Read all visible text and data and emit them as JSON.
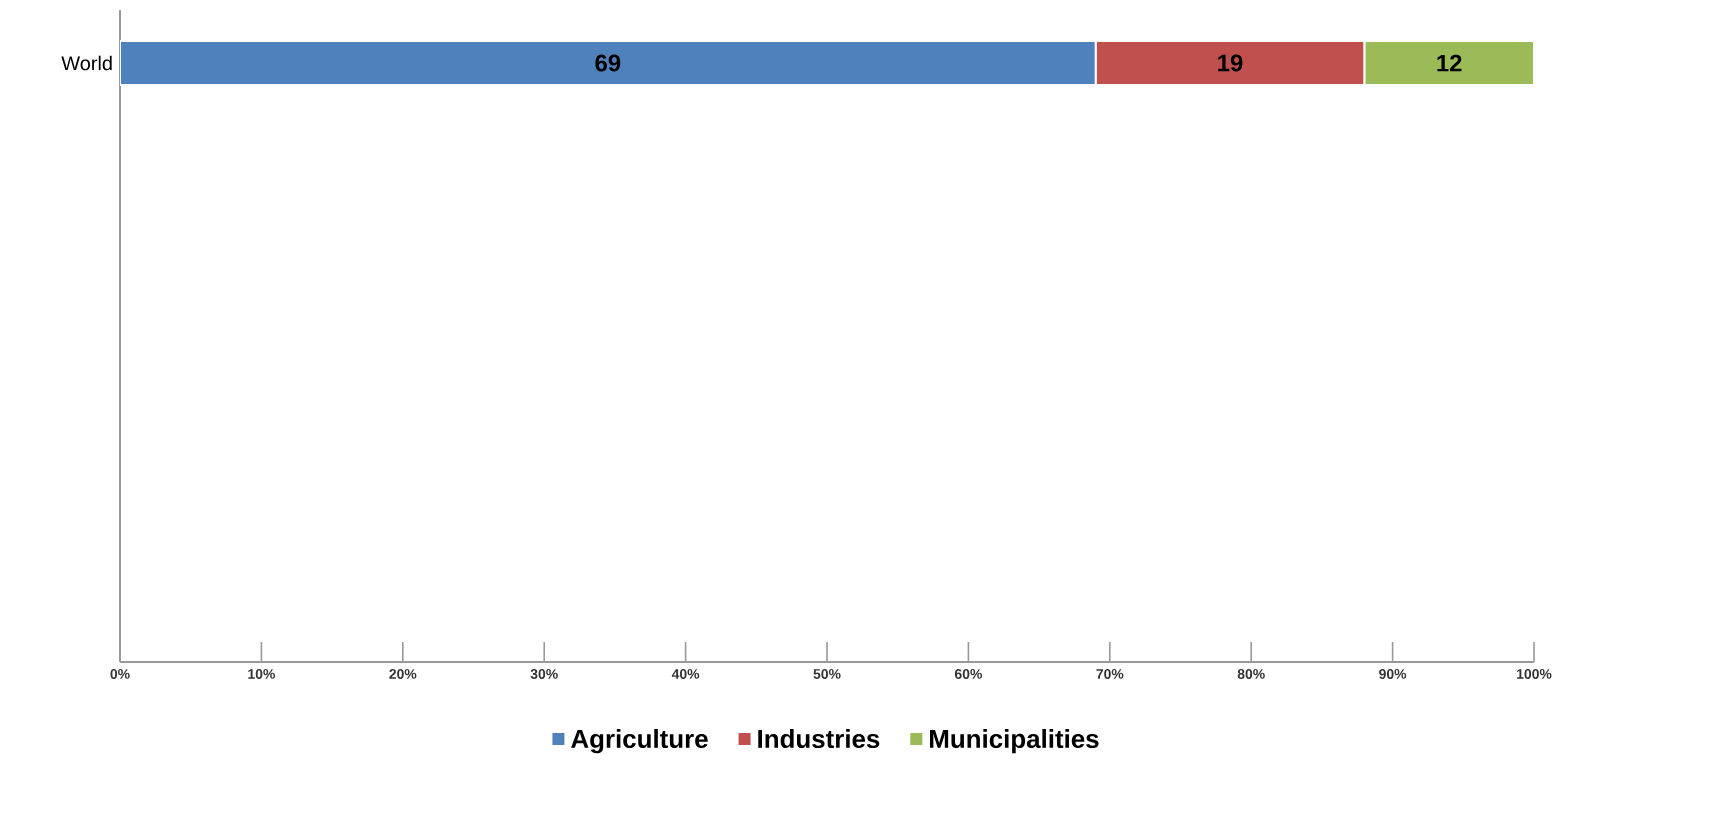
{
  "chart_data": {
    "type": "bar",
    "orientation": "horizontal",
    "stacked": true,
    "categories": [
      "World"
    ],
    "series": [
      {
        "name": "Agriculture",
        "color": "#4f81bd",
        "values": [
          69
        ]
      },
      {
        "name": "Industries",
        "color": "#c0504d",
        "values": [
          19
        ]
      },
      {
        "name": "Municipalities",
        "color": "#9bbb59",
        "values": [
          12
        ]
      }
    ],
    "xlim": [
      0,
      100
    ],
    "xticks": [
      {
        "value": 0,
        "label": "0%"
      },
      {
        "value": 10,
        "label": "10%"
      },
      {
        "value": 20,
        "label": "20%"
      },
      {
        "value": 30,
        "label": "30%"
      },
      {
        "value": 40,
        "label": "40%"
      },
      {
        "value": 50,
        "label": "50%"
      },
      {
        "value": 60,
        "label": "60%"
      },
      {
        "value": 70,
        "label": "70%"
      },
      {
        "value": 80,
        "label": "80%"
      },
      {
        "value": 90,
        "label": "90%"
      },
      {
        "value": 100,
        "label": "100%"
      }
    ],
    "data_labels": true,
    "legend": "bottom",
    "grid": false
  }
}
